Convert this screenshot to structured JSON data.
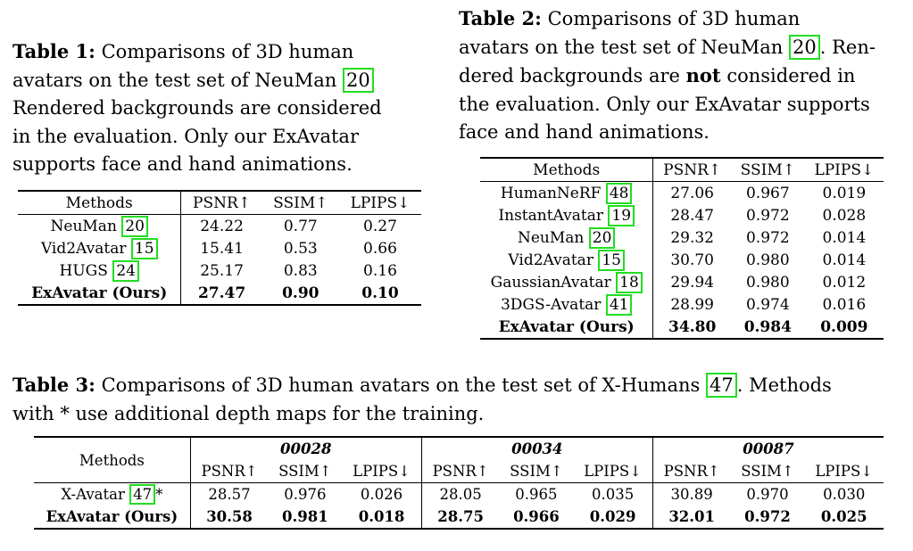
{
  "table1": {
    "caption_label": "Table 1:",
    "caption_lines": [
      "Comparisons of 3D human",
      "avatars on the test set of NeuMan",
      "Rendered backgrounds are considered",
      "in the evaluation. Only our ExAvatar",
      "supports face and hand animations."
    ],
    "cite": "20",
    "headers": [
      "Methods",
      "PSNR↑",
      "SSIM↑",
      "LPIPS↓"
    ],
    "rows": [
      {
        "method": "NeuMan",
        "cite": "20",
        "values": [
          "24.22",
          "0.77",
          "0.27"
        ]
      },
      {
        "method": "Vid2Avatar",
        "cite": "15",
        "values": [
          "15.41",
          "0.53",
          "0.66"
        ]
      },
      {
        "method": "HUGS",
        "cite": "24",
        "values": [
          "25.17",
          "0.83",
          "0.16"
        ]
      },
      {
        "method": "ExAvatar (Ours)",
        "cite": "",
        "values": [
          "27.47",
          "0.90",
          "0.10"
        ]
      }
    ]
  },
  "table2": {
    "caption_label": "Table 2:",
    "caption_lines": [
      "Comparisons of 3D human",
      "avatars on the test set of NeuMan",
      ". Ren-",
      "dered backgrounds are",
      "not",
      "considered in",
      "the evaluation. Only our ExAvatar supports",
      "face and hand animations."
    ],
    "cite": "20",
    "headers": [
      "Methods",
      "PSNR↑",
      "SSIM↑",
      "LPIPS↓"
    ],
    "rows": [
      {
        "method": "HumanNeRF",
        "cite": "48",
        "values": [
          "27.06",
          "0.967",
          "0.019"
        ]
      },
      {
        "method": "InstantAvatar",
        "cite": "19",
        "values": [
          "28.47",
          "0.972",
          "0.028"
        ]
      },
      {
        "method": "NeuMan",
        "cite": "20",
        "values": [
          "29.32",
          "0.972",
          "0.014"
        ]
      },
      {
        "method": "Vid2Avatar",
        "cite": "15",
        "values": [
          "30.70",
          "0.980",
          "0.014"
        ]
      },
      {
        "method": "GaussianAvatar",
        "cite": "18",
        "values": [
          "29.94",
          "0.980",
          "0.012"
        ]
      },
      {
        "method": "3DGS-Avatar",
        "cite": "41",
        "values": [
          "28.99",
          "0.974",
          "0.016"
        ]
      },
      {
        "method": "ExAvatar (Ours)",
        "cite": "",
        "values": [
          "34.80",
          "0.984",
          "0.009"
        ]
      }
    ]
  },
  "table3": {
    "caption_label": "Table 3:",
    "caption_lines": [
      "Comparisons of 3D human avatars on the test set of X-Humans",
      ". Methods",
      "with * use additional depth maps for the training."
    ],
    "cite": "47",
    "methods_header": "Methods",
    "groups": [
      "00028",
      "00034",
      "00087"
    ],
    "metrics": [
      "PSNR↑",
      "SSIM↑",
      "LPIPS↓"
    ],
    "rows": [
      {
        "method": "X-Avatar",
        "cite": "47",
        "suffix": "*",
        "values": [
          "28.57",
          "0.976",
          "0.026",
          "28.05",
          "0.965",
          "0.035",
          "30.89",
          "0.970",
          "0.030"
        ]
      },
      {
        "method": "ExAvatar (Ours)",
        "cite": "",
        "suffix": "",
        "values": [
          "30.58",
          "0.981",
          "0.018",
          "28.75",
          "0.966",
          "0.029",
          "32.01",
          "0.972",
          "0.025"
        ]
      }
    ]
  }
}
